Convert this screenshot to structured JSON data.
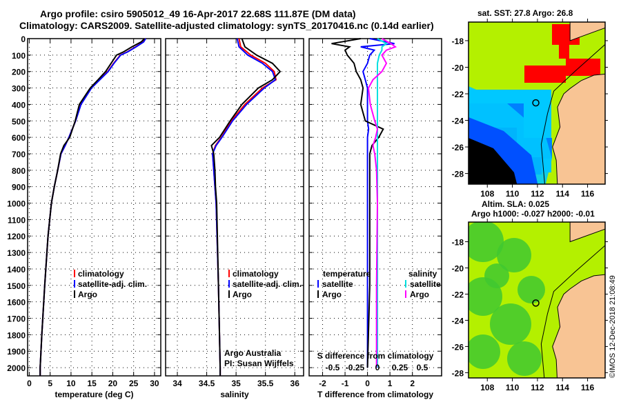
{
  "title_line1": "Argo profile: csiro 5905012_49 16-Apr-2017 22.68S 111.87E (DM data)",
  "title_line2": "Climatology: CARS2009. Satellite-adjusted climatology: synTS_20170416.nc (0.14d earlier)",
  "colors": {
    "climatology": "#ff0000",
    "satellite": "#0000ff",
    "argo": "#000000",
    "sal_sat": "#00e0e0",
    "sal_argo": "#ff00ff",
    "lime": "#b4f000",
    "land": "#f8c494"
  },
  "chart_data": [
    {
      "type": "line",
      "xlabel": "temperature (deg C)",
      "ylabel": "depth",
      "xlim": [
        -0.4,
        31.5
      ],
      "ylim": [
        2060,
        0
      ],
      "xticks": [
        "0",
        "5",
        "10",
        "15",
        "20",
        "25",
        "30"
      ],
      "xtick_values": [
        0,
        5,
        10,
        15,
        20,
        25,
        30
      ],
      "yticks": [
        "0",
        "100",
        "200",
        "300",
        "400",
        "500",
        "600",
        "700",
        "800",
        "900",
        "1000",
        "1100",
        "1200",
        "1300",
        "1400",
        "1500",
        "1600",
        "1700",
        "1800",
        "1900",
        "2000"
      ],
      "depth": [
        0,
        20,
        50,
        80,
        100,
        150,
        200,
        250,
        300,
        400,
        500,
        600,
        650,
        700,
        800,
        900,
        1000,
        1200,
        1500,
        1800,
        2000,
        2050
      ],
      "series": [
        {
          "name": "climatology",
          "values": [
            27.8,
            27.3,
            25.5,
            23.5,
            21.8,
            20.2,
            18.8,
            16.8,
            14.8,
            12.3,
            11.1,
            9.5,
            8.6,
            7.6,
            6.8,
            6.0,
            5.3,
            4.5,
            3.7,
            3.0,
            2.6,
            2.6
          ]
        },
        {
          "name": "satellite-adj. clim.",
          "values": [
            27.9,
            27.4,
            25.6,
            23.6,
            21.9,
            20.3,
            18.9,
            16.9,
            14.9,
            12.4,
            11.1,
            9.5,
            8.6,
            7.6,
            6.8,
            6.0,
            5.3,
            4.5,
            3.7,
            3.0,
            2.6,
            2.6
          ]
        },
        {
          "name": "Argo",
          "values": [
            27.6,
            26.8,
            24.6,
            22.6,
            20.9,
            19.6,
            18.3,
            16.5,
            14.6,
            12.0,
            11.0,
            9.7,
            8.3,
            7.5,
            6.8,
            6.0,
            5.3,
            4.5,
            3.7,
            3.0,
            2.6,
            2.6
          ]
        }
      ]
    },
    {
      "type": "line",
      "xlabel": "salinity",
      "xlim": [
        33.8,
        36.15
      ],
      "ylim": [
        2060,
        0
      ],
      "xticks": [
        "34",
        "34.5",
        "35",
        "35.5",
        "36"
      ],
      "xtick_values": [
        34,
        34.5,
        35,
        35.5,
        36
      ],
      "depth": [
        0,
        50,
        100,
        150,
        200,
        250,
        300,
        400,
        500,
        600,
        650,
        700,
        800,
        900,
        1000,
        1500,
        2000,
        2050
      ],
      "series": [
        {
          "name": "climatology",
          "values": [
            35.05,
            35.08,
            35.25,
            35.5,
            35.65,
            35.68,
            35.45,
            35.15,
            34.92,
            34.75,
            34.65,
            34.6,
            34.62,
            34.64,
            34.66,
            34.7,
            34.73,
            34.73
          ]
        },
        {
          "name": "satellite-adj. clim.",
          "values": [
            35.02,
            35.05,
            35.2,
            35.45,
            35.62,
            35.67,
            35.48,
            35.18,
            34.94,
            34.76,
            34.66,
            34.6,
            34.62,
            34.64,
            34.66,
            34.7,
            34.73,
            34.73
          ]
        },
        {
          "name": "Argo",
          "values": [
            35.1,
            35.15,
            35.35,
            35.62,
            35.75,
            35.62,
            35.38,
            35.1,
            34.9,
            34.72,
            34.58,
            34.62,
            34.64,
            34.65,
            34.67,
            34.7,
            34.73,
            34.73
          ]
        }
      ],
      "annotation1": "Argo Australia",
      "annotation2": "PI: Susan Wijffels"
    },
    {
      "type": "line",
      "xlabel": "T difference from climatology",
      "xlabel2": "S difference from climatology",
      "xlim": [
        -2.6,
        3.3
      ],
      "ylim": [
        2060,
        0
      ],
      "xticks": [
        "-2",
        "-1",
        "0",
        "1",
        "2"
      ],
      "xtick_values": [
        -2,
        -1,
        0,
        1,
        2
      ],
      "s_xticks": [
        "-0.5",
        "-0.25",
        "0",
        "0.25",
        "0.5"
      ],
      "s_xtick_values": [
        -0.5,
        -0.25,
        0,
        0.25,
        0.5
      ],
      "depth": [
        0,
        30,
        50,
        70,
        100,
        150,
        200,
        250,
        300,
        400,
        500,
        550,
        600,
        650,
        700,
        800,
        1000,
        1500,
        2000
      ],
      "series": [
        {
          "name": "temperature satellite",
          "values": [
            0.1,
            1.2,
            -0.3,
            0.3,
            0.1,
            0.0,
            -0.2,
            -0.1,
            0.0,
            0.0,
            0.0,
            0.05,
            0.0,
            0.0,
            0.0,
            0.0,
            0.0,
            0.0,
            0.0
          ]
        },
        {
          "name": "temperature Argo",
          "values": [
            -0.3,
            -1.6,
            -0.8,
            -1.0,
            -0.9,
            -0.6,
            -0.5,
            -0.3,
            -0.2,
            -0.3,
            -0.1,
            0.7,
            0.5,
            0.2,
            0.1,
            0.1,
            0.1,
            0.1,
            0.0
          ]
        },
        {
          "name": "salinity satellite",
          "values": [
            0.0,
            0.1,
            0.05,
            0.05,
            0.02,
            0.0,
            0.0,
            0.0,
            0.0,
            0.0,
            0.0,
            0.0,
            0.0,
            0.0,
            0.0,
            0.0,
            0.0,
            0.0,
            0.0
          ]
        },
        {
          "name": "salinity Argo",
          "values": [
            0.05,
            0.15,
            0.2,
            0.1,
            0.05,
            0.1,
            0.05,
            -0.05,
            -0.1,
            -0.08,
            -0.03,
            0.0,
            -0.02,
            -0.05,
            -0.03,
            -0.01,
            0.0,
            -0.01,
            -0.01
          ]
        }
      ],
      "legend": {
        "temperature": "temperature",
        "salinity": "salinity",
        "satellite": "satellite",
        "argo": "Argo"
      }
    }
  ],
  "legend": {
    "climatology": "climatology",
    "satellite": "satellite-adj. clim.",
    "argo": "Argo"
  },
  "map1": {
    "title": "sat. SST: 27.8 Argo: 26.8",
    "lon_ticks": [
      "108",
      "110",
      "112",
      "114",
      "116"
    ],
    "lat_ticks": [
      "-18",
      "-20",
      "-22",
      "-24",
      "-26",
      "-28"
    ]
  },
  "map2": {
    "title1": "Altim. SLA: 0.025",
    "title2": "Argo h1000: -0.027 h2000: -0.01",
    "lon_ticks": [
      "108",
      "110",
      "112",
      "114",
      "116"
    ],
    "lat_ticks": [
      "-18",
      "-20",
      "-22",
      "-24",
      "-26",
      "-28"
    ]
  },
  "float_position": {
    "lon": 111.87,
    "lat": -22.68
  },
  "credit": "©IMOS 12-Dec-2018 21:08:49"
}
